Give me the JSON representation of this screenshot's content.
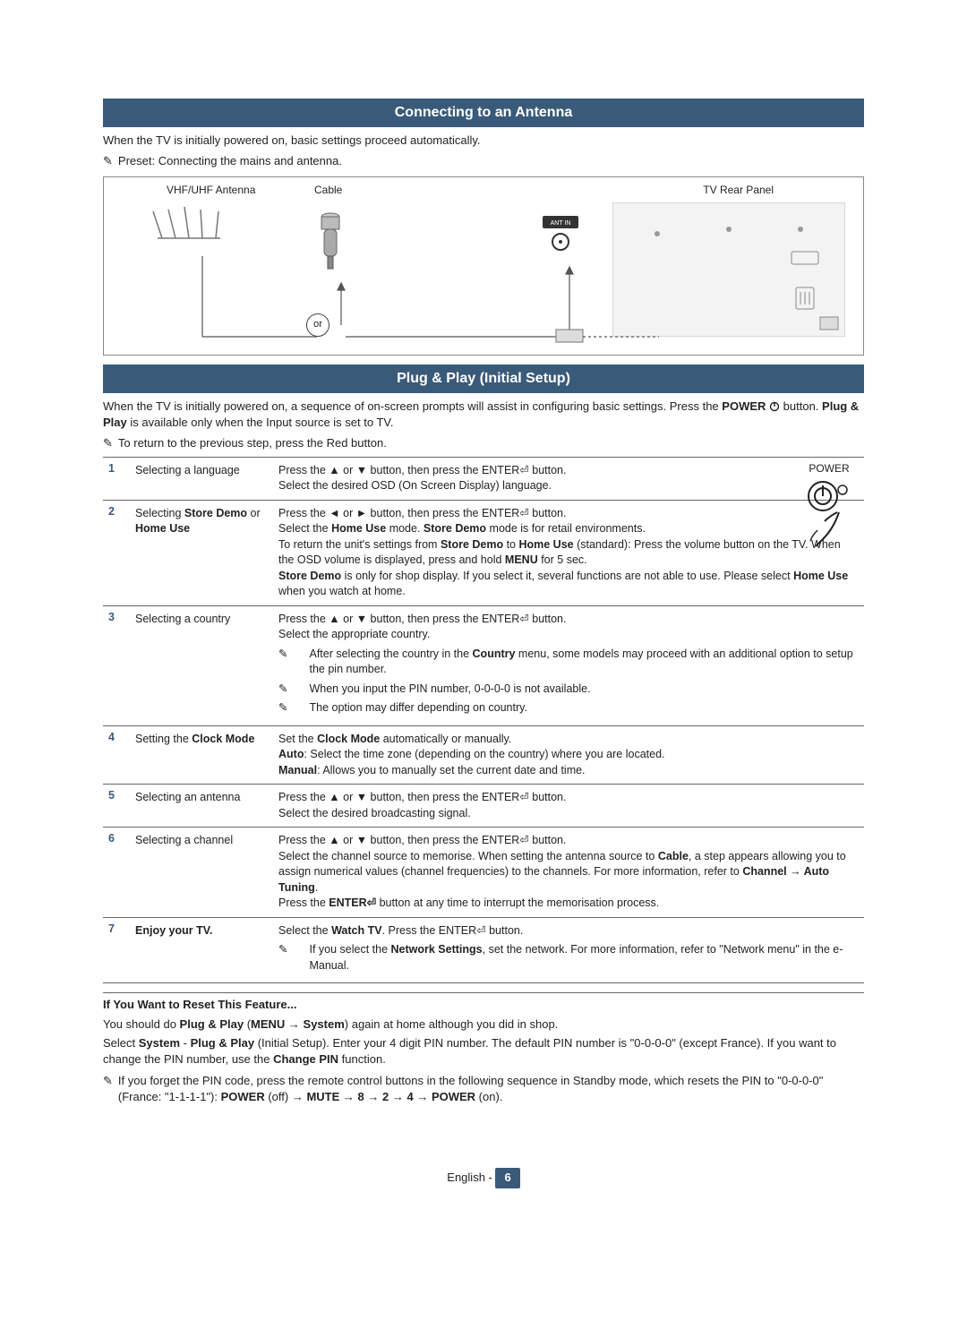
{
  "section1": {
    "title": "Connecting to an Antenna",
    "intro": "When the TV is initially powered on, basic settings proceed automatically.",
    "preset_note": "Preset: Connecting the mains and antenna.",
    "labels": {
      "vhf": "VHF/UHF Antenna",
      "cable": "Cable",
      "rear": "TV Rear Panel",
      "or": "or"
    }
  },
  "section2": {
    "title": "Plug & Play (Initial Setup)",
    "intro_a": "When the TV is initially powered on, a sequence of on-screen prompts will assist in configuring basic settings. Press the ",
    "intro_b": " button. ",
    "intro_c": " is available only when the Input source is set to TV.",
    "power_word": "POWER",
    "plugplay_word": "Plug & Play",
    "return_note": "To return to the previous step, press the Red button.",
    "power_label": "POWER"
  },
  "steps": [
    {
      "num": "1",
      "title": "Selecting a language",
      "body_lines": [
        "Press the ▲ or ▼ button, then press the ENTER⏎ button.",
        "Select the desired OSD (On Screen Display) language."
      ]
    },
    {
      "num": "2",
      "title_a": "Selecting ",
      "title_b": "Store Demo",
      "title_c": " or ",
      "title_d": "Home Use",
      "body_lines": [
        "Press the ◄ or ► button, then press the ENTER⏎ button.",
        "Select the <b>Home Use</b> mode. <b>Store Demo</b> mode is for retail environments.",
        "To return the unit's settings from <b>Store Demo</b> to <b>Home Use</b> (standard): Press the volume button on the TV. When the OSD volume is displayed, press and hold <b>MENU</b> for 5 sec.",
        "<b>Store Demo</b> is only for shop display. If you select it, several functions are not able to use. Please select <b>Home Use</b> when you watch at home."
      ]
    },
    {
      "num": "3",
      "title": "Selecting a country",
      "body_lines": [
        "Press the ▲ or ▼ button, then press the ENTER⏎ button.",
        "Select the appropriate country."
      ],
      "notes": [
        "After selecting the country in the <b>Country</b> menu, some models may proceed with an additional option to setup the pin number.",
        "When you input the PIN number, 0-0-0-0 is not available.",
        "The option may differ depending on country."
      ]
    },
    {
      "num": "4",
      "title_a": "Setting the ",
      "title_b": "Clock Mode",
      "body_lines": [
        "Set the <b>Clock Mode</b> automatically or manually.",
        "<b>Auto</b>: Select the time zone (depending on the country) where you are located.",
        "<b>Manual</b>: Allows you to manually set the current date and time."
      ]
    },
    {
      "num": "5",
      "title": "Selecting an antenna",
      "body_lines": [
        "Press the ▲ or ▼ button, then press the ENTER⏎ button.",
        "Select the desired broadcasting signal."
      ]
    },
    {
      "num": "6",
      "title": "Selecting a channel",
      "body_lines": [
        "Press the ▲ or ▼ button, then press the ENTER⏎ button.",
        "Select the channel source to memorise. When setting the antenna source to <b>Cable</b>, a step appears allowing you to assign numerical values (channel frequencies) to the channels. For more information, refer to <b>Channel → Auto Tuning</b>.",
        "Press the <b>ENTER⏎</b> button at any time to interrupt the memorisation process."
      ]
    },
    {
      "num": "7",
      "title": "Enjoy your TV.",
      "title_bold": true,
      "body_lines": [
        "Select the <b>Watch TV</b>. Press the ENTER⏎ button."
      ],
      "notes": [
        "If you select the <b>Network Settings</b>, set the network. For more information, refer to \"Network menu\" in the e-Manual."
      ]
    }
  ],
  "reset": {
    "head": "If You Want to Reset This Feature...",
    "p1": "You should do <b>Plug & Play</b> (<b>MENU → System</b>) again at home although you did in shop.",
    "p2": "Select <b>System</b> - <b>Plug & Play</b> (Initial Setup). Enter your 4 digit PIN number. The default PIN number is \"0-0-0-0\" (except France). If you want to change the PIN number, use the <b>Change PIN</b> function.",
    "note": "If you forget the PIN code, press the remote control buttons in the following sequence in Standby mode, which resets the PIN to \"0-0-0-0\" (France: \"1-1-1-1\"): <b>POWER</b> (off) → <b>MUTE</b> → <b>8</b> → <b>2</b> → <b>4</b> → <b>POWER</b> (on)."
  },
  "footer": {
    "lang": "English - ",
    "page": "6"
  },
  "colors": {
    "bar_bg": "#3a5a7a",
    "bar_fg": "#ffffff",
    "text": "#222222",
    "rule": "#666666"
  }
}
